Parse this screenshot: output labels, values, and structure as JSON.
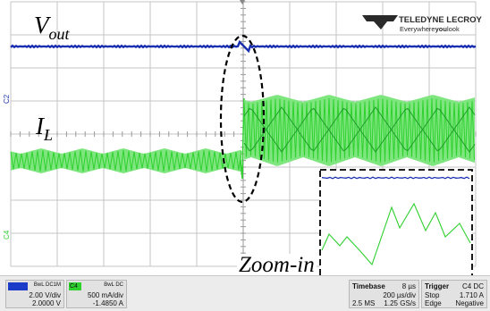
{
  "logo": {
    "brand": "TELEDYNE LECROY",
    "tagline_pre": "Everywhere",
    "tagline_bold": "you",
    "tagline_post": "look",
    "color": "#2a2a2a"
  },
  "annotations": {
    "vout_main": "V",
    "vout_sub": "out",
    "il_main": "I",
    "il_sub": "L",
    "zoom": "Zoom-in"
  },
  "channel_markers": {
    "c2": "C2",
    "c4": "C4"
  },
  "colors": {
    "grid": "#c4c4c4",
    "ch2": "#1a2fb0",
    "ch4": "#2fd12f",
    "ch4_light": "#7fe67f",
    "ch4_dark": "#1e9e2a",
    "cursor": "#2fd12f"
  },
  "status": {
    "c2": {
      "name": "C2",
      "flags": "BwL DC1M",
      "vdiv": "2.00 V/div",
      "offset": "2.0000 V",
      "color": "#1a3cc8"
    },
    "c4": {
      "name": "C4",
      "flags": "BwL DC",
      "vdiv": "500 mA/div",
      "offset": "-1.4850 A",
      "color": "#2fd12f"
    },
    "timebase": {
      "title": "Timebase",
      "delay": "8 µs",
      "tdiv": "200 µs/div",
      "samples": "2.5 MS",
      "rate": "1.25 GS/s"
    },
    "trigger": {
      "title": "Trigger",
      "channel": "C4 DC",
      "mode": "Stop",
      "level": "1.710 A",
      "type": "Edge",
      "slope": "Negative"
    }
  }
}
